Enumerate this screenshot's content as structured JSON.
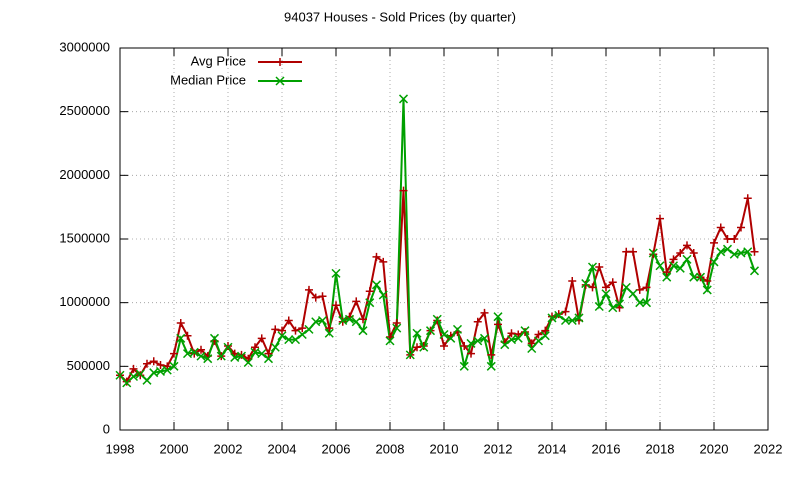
{
  "chart_data": {
    "type": "line",
    "title": "94037 Houses - Sold Prices (by quarter)",
    "x": [
      1998,
      1998.25,
      1998.5,
      1998.75,
      1999,
      1999.25,
      1999.5,
      1999.75,
      2000,
      2000.25,
      2000.5,
      2000.75,
      2001,
      2001.25,
      2001.5,
      2001.75,
      2002,
      2002.25,
      2002.5,
      2002.75,
      2003,
      2003.25,
      2003.5,
      2003.75,
      2004,
      2004.25,
      2004.5,
      2004.75,
      2005,
      2005.25,
      2005.5,
      2005.75,
      2006,
      2006.25,
      2006.5,
      2006.75,
      2007,
      2007.25,
      2007.5,
      2007.75,
      2008,
      2008.25,
      2008.5,
      2008.75,
      2009,
      2009.25,
      2009.5,
      2009.75,
      2010,
      2010.25,
      2010.5,
      2010.75,
      2011,
      2011.25,
      2011.5,
      2011.75,
      2012,
      2012.25,
      2012.5,
      2012.75,
      2013,
      2013.25,
      2013.5,
      2013.75,
      2014,
      2014.25,
      2014.5,
      2014.75,
      2015,
      2015.25,
      2015.5,
      2015.75,
      2016,
      2016.25,
      2016.5,
      2016.75,
      2017,
      2017.25,
      2017.5,
      2017.75,
      2018,
      2018.25,
      2018.5,
      2018.75,
      2019,
      2019.25,
      2019.5,
      2019.75,
      2020,
      2020.25,
      2020.5,
      2020.75,
      2021,
      2021.25,
      2021.5
    ],
    "series": [
      {
        "name": "Avg Price",
        "color": "#b00000",
        "marker": "plus",
        "values": [
          430000,
          380000,
          480000,
          430000,
          520000,
          540000,
          510000,
          500000,
          600000,
          840000,
          740000,
          600000,
          630000,
          580000,
          700000,
          580000,
          660000,
          600000,
          590000,
          560000,
          650000,
          720000,
          600000,
          790000,
          780000,
          860000,
          780000,
          800000,
          1100000,
          1040000,
          1050000,
          800000,
          980000,
          850000,
          890000,
          1010000,
          870000,
          1090000,
          1360000,
          1320000,
          730000,
          840000,
          1880000,
          590000,
          650000,
          660000,
          780000,
          860000,
          660000,
          740000,
          770000,
          660000,
          600000,
          850000,
          920000,
          590000,
          830000,
          690000,
          760000,
          750000,
          770000,
          680000,
          750000,
          780000,
          890000,
          910000,
          930000,
          1170000,
          860000,
          1140000,
          1120000,
          1280000,
          1120000,
          1160000,
          960000,
          1400000,
          1400000,
          1100000,
          1120000,
          1380000,
          1660000,
          1240000,
          1340000,
          1390000,
          1450000,
          1390000,
          1200000,
          1170000,
          1470000,
          1590000,
          1500000,
          1500000,
          1590000,
          1820000,
          1400000
        ]
      },
      {
        "name": "Median Price",
        "color": "#00a000",
        "marker": "cross",
        "values": [
          430000,
          370000,
          420000,
          440000,
          390000,
          450000,
          460000,
          470000,
          500000,
          720000,
          600000,
          610000,
          580000,
          560000,
          720000,
          580000,
          650000,
          570000,
          580000,
          530000,
          610000,
          600000,
          560000,
          650000,
          740000,
          710000,
          710000,
          750000,
          790000,
          850000,
          860000,
          760000,
          1230000,
          860000,
          870000,
          850000,
          780000,
          1000000,
          1140000,
          1060000,
          700000,
          800000,
          2600000,
          590000,
          760000,
          650000,
          780000,
          870000,
          750000,
          720000,
          790000,
          500000,
          680000,
          700000,
          720000,
          500000,
          890000,
          670000,
          710000,
          720000,
          780000,
          640000,
          700000,
          740000,
          880000,
          900000,
          860000,
          860000,
          880000,
          1150000,
          1280000,
          970000,
          1070000,
          960000,
          990000,
          1120000,
          1070000,
          1000000,
          1000000,
          1390000,
          1290000,
          1200000,
          1290000,
          1270000,
          1340000,
          1200000,
          1200000,
          1100000,
          1320000,
          1400000,
          1420000,
          1380000,
          1390000,
          1400000,
          1250000
        ]
      }
    ],
    "xlim": [
      1998,
      2022
    ],
    "xticks": [
      1998,
      2000,
      2002,
      2004,
      2006,
      2008,
      2010,
      2012,
      2014,
      2016,
      2018,
      2020,
      2022
    ],
    "ylim": [
      0,
      3000000
    ],
    "yticks": [
      0,
      500000,
      1000000,
      1500000,
      2000000,
      2500000,
      3000000
    ],
    "grid": true,
    "legend": "top-left"
  }
}
